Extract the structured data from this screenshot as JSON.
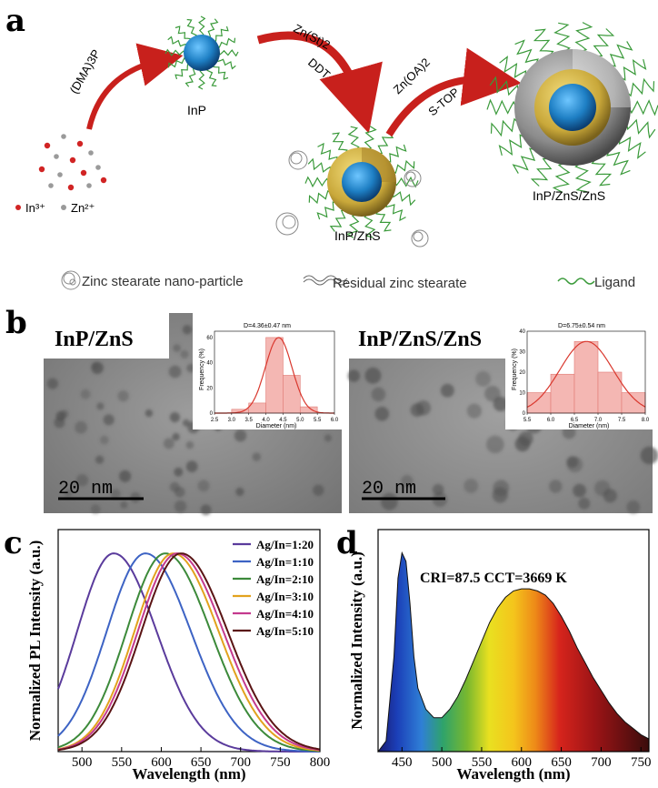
{
  "panel_labels": {
    "a": "a",
    "b": "b",
    "c": "c",
    "d": "d"
  },
  "schematic": {
    "precursor_reagent": "(DMA)3P",
    "core_label": "InP",
    "shell1_reagent_top": "Zn(St)2",
    "shell1_reagent_bottom": "DDT",
    "core_shell_label": "InP/ZnS",
    "shell2_reagent_top": "Zn(OA)2",
    "shell2_reagent_bottom": "S-TOP",
    "core_shell_shell_label": "InP/ZnS/ZnS",
    "ion_in_label": "In³⁺",
    "ion_zn_label": "Zn²⁺",
    "legend": {
      "zinc_np": "Zinc stearate nano-particle",
      "residual": "Residual zinc stearate",
      "ligand": "Ligand"
    },
    "colors": {
      "arrow": "#c8201c",
      "core": "#1e7fc4",
      "shell": "#c9a83a",
      "ligand": "#3a9a3a"
    }
  },
  "tem": {
    "left": {
      "title": "InP/ZnS",
      "scale_bar": "20 nm"
    },
    "right": {
      "title": "InP/ZnS/ZnS",
      "scale_bar": "20 nm"
    }
  },
  "chart_data": [
    {
      "panel": "b-left-inset",
      "type": "bar",
      "title": "D=4.36±0.47 nm",
      "xlabel": "Diameter (nm)",
      "ylabel": "Frequency (%)",
      "bins": [
        [
          2.5,
          3.0
        ],
        [
          3.0,
          3.5
        ],
        [
          3.5,
          4.0
        ],
        [
          4.0,
          4.5
        ],
        [
          4.5,
          5.0
        ],
        [
          5.0,
          5.5
        ],
        [
          5.5,
          6.0
        ]
      ],
      "values": [
        0,
        3,
        8,
        60,
        30,
        5,
        0
      ],
      "xticks": [
        "2.5",
        "3.0",
        "3.5",
        "4.0",
        "4.5",
        "5.0",
        "5.5",
        "6.0"
      ],
      "yticks": [
        "0",
        "20",
        "40",
        "60"
      ],
      "xlim": [
        2.5,
        6.0
      ],
      "ylim": [
        0,
        65
      ]
    },
    {
      "panel": "b-right-inset",
      "type": "bar",
      "title": "D=6.75±0.54 nm",
      "xlabel": "Diameter (nm)",
      "ylabel": "Frequency (%)",
      "bins": [
        [
          5.5,
          6.0
        ],
        [
          6.0,
          6.5
        ],
        [
          6.5,
          7.0
        ],
        [
          7.0,
          7.5
        ],
        [
          7.5,
          8.0
        ]
      ],
      "values": [
        10,
        19,
        35,
        20,
        10
      ],
      "xticks": [
        "5.5",
        "6.0",
        "6.5",
        "7.0",
        "7.5",
        "8.0"
      ],
      "yticks": [
        "0",
        "10",
        "20",
        "30",
        "40"
      ],
      "xlim": [
        5.5,
        8.0
      ],
      "ylim": [
        0,
        40
      ]
    },
    {
      "panel": "c",
      "type": "line",
      "xlabel": "Wavelength (nm)",
      "ylabel": "Normalized PL Intensity (a.u.)",
      "xlim": [
        470,
        800
      ],
      "ylim": [
        0,
        1.12
      ],
      "xticks": [
        "500",
        "550",
        "600",
        "650",
        "700",
        "750",
        "800"
      ],
      "series": [
        {
          "name": "Ag/In=1:20",
          "color": "#5a3b9c",
          "peak": 540,
          "fwhm": 118
        },
        {
          "name": "Ag/In=1:10",
          "color": "#3d63c4",
          "peak": 580,
          "fwhm": 125
        },
        {
          "name": "Ag/In=2:10",
          "color": "#3c8a3a",
          "peak": 605,
          "fwhm": 125
        },
        {
          "name": "Ag/In=3:10",
          "color": "#e2a21e",
          "peak": 615,
          "fwhm": 125
        },
        {
          "name": "Ag/In=4:10",
          "color": "#c43a8e",
          "peak": 620,
          "fwhm": 127
        },
        {
          "name": "Ag/In=5:10",
          "color": "#5a1414",
          "peak": 625,
          "fwhm": 128
        }
      ]
    },
    {
      "panel": "d",
      "type": "area",
      "annotation": "CRI=87.5   CCT=3669 K",
      "xlabel": "Wavelength (nm)",
      "ylabel": "Normalized Intensity (a.u.)",
      "xlim": [
        420,
        760
      ],
      "ylim": [
        0,
        1.05
      ],
      "xticks": [
        "450",
        "500",
        "550",
        "600",
        "650",
        "700",
        "750"
      ],
      "x": [
        420,
        430,
        440,
        445,
        450,
        455,
        460,
        465,
        470,
        480,
        490,
        500,
        510,
        520,
        530,
        540,
        550,
        560,
        570,
        580,
        590,
        600,
        610,
        620,
        630,
        640,
        650,
        660,
        670,
        680,
        690,
        700,
        710,
        720,
        730,
        740,
        750,
        760
      ],
      "y": [
        0.0,
        0.05,
        0.45,
        0.82,
        0.94,
        0.9,
        0.7,
        0.45,
        0.3,
        0.2,
        0.16,
        0.16,
        0.2,
        0.26,
        0.34,
        0.43,
        0.52,
        0.61,
        0.68,
        0.73,
        0.76,
        0.77,
        0.77,
        0.76,
        0.74,
        0.7,
        0.64,
        0.57,
        0.49,
        0.42,
        0.35,
        0.29,
        0.23,
        0.18,
        0.14,
        0.11,
        0.08,
        0.06
      ]
    }
  ]
}
